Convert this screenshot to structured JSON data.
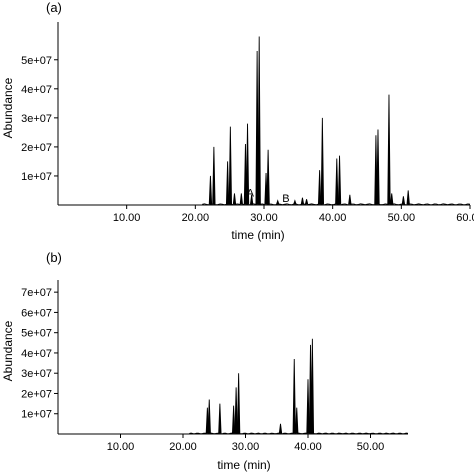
{
  "chart_data": [
    {
      "type": "line",
      "panel_label": "(a)",
      "xlabel": "time (min)",
      "ylabel": "Abundance",
      "xlim": [
        0,
        60
      ],
      "ylim": [
        0,
        63000000
      ],
      "x_ticks": [
        {
          "value": 10,
          "label": "10.00"
        },
        {
          "value": 20,
          "label": "20.00"
        },
        {
          "value": 30,
          "label": "30.00"
        },
        {
          "value": 40,
          "label": "40.00"
        },
        {
          "value": 50,
          "label": "50.00"
        },
        {
          "value": 60,
          "label": "60.00"
        }
      ],
      "y_ticks": [
        {
          "value": 10000000,
          "label": "1e+07"
        },
        {
          "value": 20000000,
          "label": "2e+07"
        },
        {
          "value": 30000000,
          "label": "3e+07"
        },
        {
          "value": 40000000,
          "label": "4e+07"
        },
        {
          "value": 50000000,
          "label": "5e+07"
        }
      ],
      "peaks": [
        {
          "x": 22.2,
          "y": 10000000
        },
        {
          "x": 22.7,
          "y": 20000000
        },
        {
          "x": 24.7,
          "y": 15000000
        },
        {
          "x": 25.1,
          "y": 27000000
        },
        {
          "x": 25.7,
          "y": 4000000
        },
        {
          "x": 26.7,
          "y": 4000000
        },
        {
          "x": 27.3,
          "y": 21000000
        },
        {
          "x": 27.6,
          "y": 28000000
        },
        {
          "x": 28.2,
          "y": 3500000
        },
        {
          "x": 29.0,
          "y": 53000000
        },
        {
          "x": 29.3,
          "y": 58000000
        },
        {
          "x": 30.3,
          "y": 11000000
        },
        {
          "x": 30.6,
          "y": 19000000
        },
        {
          "x": 32.0,
          "y": 1500000
        },
        {
          "x": 34.5,
          "y": 1500000
        },
        {
          "x": 35.6,
          "y": 2500000
        },
        {
          "x": 36.2,
          "y": 2000000
        },
        {
          "x": 38.1,
          "y": 12000000
        },
        {
          "x": 38.5,
          "y": 30000000
        },
        {
          "x": 40.6,
          "y": 16000000
        },
        {
          "x": 41.0,
          "y": 17000000
        },
        {
          "x": 42.5,
          "y": 3500000
        },
        {
          "x": 46.3,
          "y": 24000000
        },
        {
          "x": 46.6,
          "y": 26000000
        },
        {
          "x": 48.2,
          "y": 38000000
        },
        {
          "x": 48.6,
          "y": 4000000
        },
        {
          "x": 50.3,
          "y": 3000000
        },
        {
          "x": 51.0,
          "y": 5000000
        }
      ],
      "annotations": [
        {
          "text": "A",
          "x": 28.0,
          "y": 3000000
        },
        {
          "text": "B",
          "x": 33.2,
          "y": 1000000
        }
      ]
    },
    {
      "type": "line",
      "panel_label": "(b)",
      "xlabel": "time (min)",
      "ylabel": "Abundance",
      "xlim": [
        0,
        56
      ],
      "ylim": [
        0,
        76000000
      ],
      "x_ticks": [
        {
          "value": 10,
          "label": "10.00"
        },
        {
          "value": 20,
          "label": "20.00"
        },
        {
          "value": 30,
          "label": "30.00"
        },
        {
          "value": 40,
          "label": "40.00"
        },
        {
          "value": 50,
          "label": "50.00"
        }
      ],
      "y_ticks": [
        {
          "value": 10000000,
          "label": "1e+07"
        },
        {
          "value": 20000000,
          "label": "2e+07"
        },
        {
          "value": 30000000,
          "label": "3e+07"
        },
        {
          "value": 40000000,
          "label": "4e+07"
        },
        {
          "value": 50000000,
          "label": "5e+07"
        },
        {
          "value": 60000000,
          "label": "6e+07"
        },
        {
          "value": 70000000,
          "label": "7e+07"
        }
      ],
      "peaks": [
        {
          "x": 23.9,
          "y": 13000000
        },
        {
          "x": 24.2,
          "y": 17000000
        },
        {
          "x": 25.9,
          "y": 15000000
        },
        {
          "x": 28.1,
          "y": 14000000
        },
        {
          "x": 28.5,
          "y": 23000000
        },
        {
          "x": 28.9,
          "y": 30000000
        },
        {
          "x": 35.6,
          "y": 5000000
        },
        {
          "x": 37.8,
          "y": 37000000
        },
        {
          "x": 38.2,
          "y": 13000000
        },
        {
          "x": 40.0,
          "y": 27000000
        },
        {
          "x": 40.4,
          "y": 44000000
        },
        {
          "x": 40.7,
          "y": 47000000
        }
      ],
      "annotations": []
    }
  ]
}
